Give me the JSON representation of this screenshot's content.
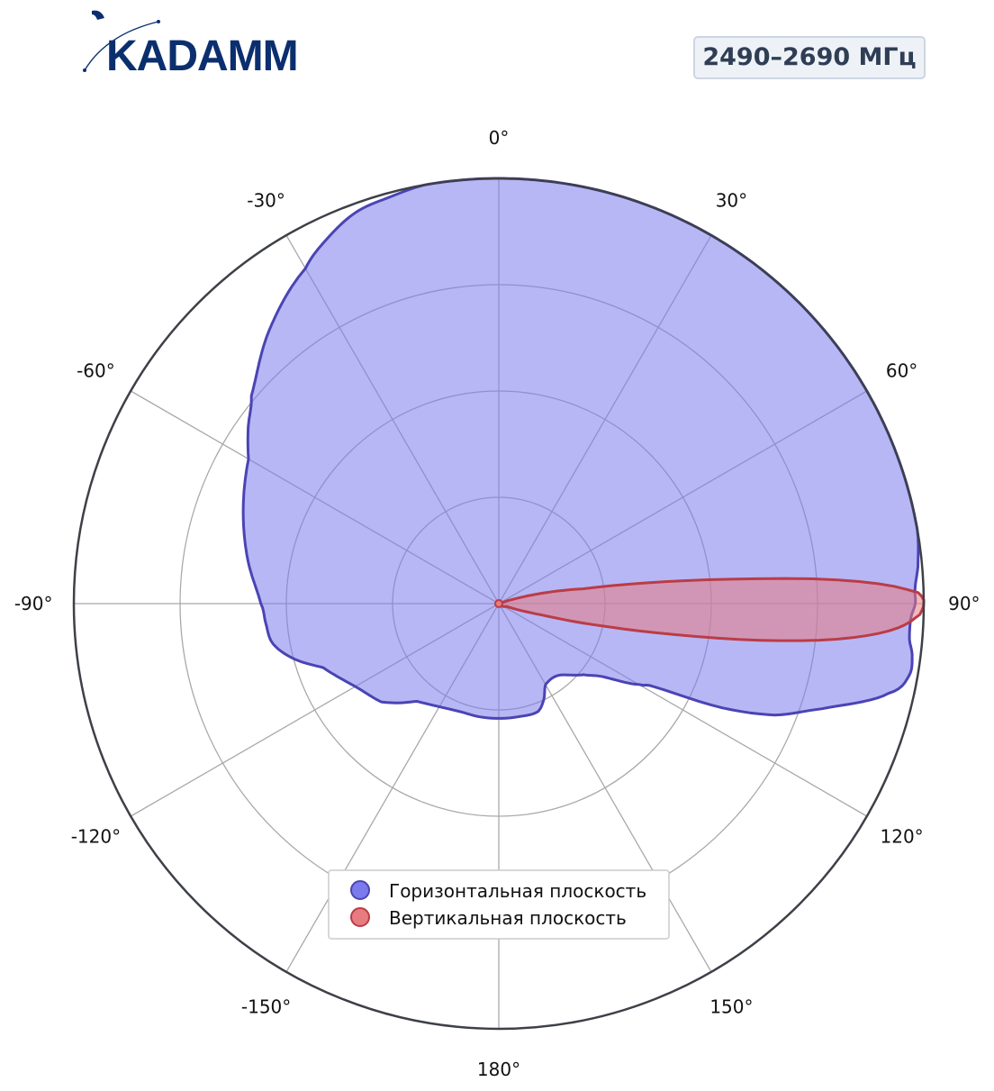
{
  "header": {
    "brand": "KADAMM",
    "frequency_label": "2490–2690 МГц"
  },
  "colors": {
    "brand": "#0b2f6e",
    "horizontal_fill": "#7b7bec",
    "horizontal_stroke": "#4a44b4",
    "vertical_fill": "#e87b80",
    "vertical_stroke": "#bb3c46",
    "grid": "#a9a9a9",
    "outer_ring": "#3d4047"
  },
  "chart_data": {
    "type": "polar",
    "angle_direction": "clockwise",
    "zero_location": "top",
    "radial_range": [
      0,
      1
    ],
    "radial_rings": [
      0.25,
      0.5,
      0.75,
      1.0
    ],
    "radial_tick_labels_shown": false,
    "grid": true,
    "angle_ticks": [
      0,
      30,
      60,
      90,
      120,
      150,
      180,
      -150,
      -120,
      -90,
      -60,
      -30
    ],
    "angle_tick_labels": [
      "0°",
      "30°",
      "60°",
      "90°",
      "120°",
      "150°",
      "180°",
      "-150°",
      "-120°",
      "-90°",
      "-60°",
      "-30°"
    ],
    "legend_position": "lower-center",
    "series": [
      {
        "name": "Горизонтальная плоскость",
        "angles": [
          0,
          10,
          20,
          30,
          40,
          50,
          60,
          70,
          80,
          85,
          88,
          90,
          92,
          95,
          97,
          100,
          103,
          108,
          112,
          115,
          118,
          120,
          125,
          130,
          140,
          150,
          155,
          160,
          170,
          180,
          190,
          200,
          210,
          220,
          225,
          230,
          240,
          250,
          255,
          260,
          265,
          270,
          280,
          290,
          300,
          305,
          310,
          320,
          330,
          335,
          340,
          345,
          350,
          355
        ],
        "values": [
          1.0,
          1.0,
          1.0,
          1.0,
          1.0,
          1.0,
          1.0,
          1.0,
          1.0,
          0.99,
          0.98,
          0.98,
          0.97,
          0.97,
          0.98,
          0.98,
          0.94,
          0.8,
          0.7,
          0.58,
          0.42,
          0.38,
          0.3,
          0.26,
          0.22,
          0.22,
          0.25,
          0.27,
          0.27,
          0.27,
          0.27,
          0.27,
          0.28,
          0.3,
          0.33,
          0.36,
          0.39,
          0.44,
          0.5,
          0.54,
          0.55,
          0.56,
          0.6,
          0.64,
          0.68,
          0.72,
          0.76,
          0.84,
          0.91,
          0.95,
          0.98,
          0.99,
          1.0,
          1.0
        ]
      },
      {
        "name": "Вертикальная плоскость",
        "angles": [
          0,
          70,
          75,
          80,
          82,
          84,
          86,
          88,
          89,
          90,
          91,
          92,
          94,
          96,
          98,
          100,
          102,
          105,
          110,
          180,
          270
        ],
        "values": [
          0.0,
          0.0,
          0.07,
          0.2,
          0.35,
          0.55,
          0.8,
          0.96,
          0.995,
          1.0,
          0.995,
          0.98,
          0.92,
          0.8,
          0.62,
          0.42,
          0.26,
          0.1,
          0.02,
          0.0,
          0.0
        ]
      }
    ]
  }
}
